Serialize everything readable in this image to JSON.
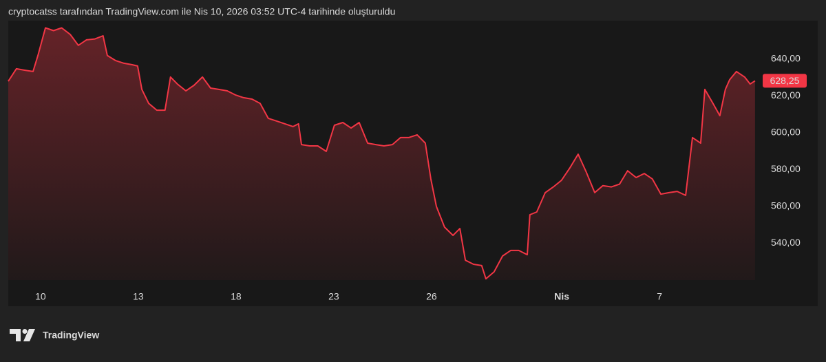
{
  "chart_data": {
    "type": "area",
    "title": "cryptocatss tarafından TradingView.com ile Nis 10, 2026 03:52 UTC-4 tarihinde oluşturuldu",
    "brand": "TradingView",
    "color": "#f23645",
    "x": [
      -0.99,
      -0.74,
      -0.49,
      -0.23,
      -0.08,
      0.15,
      0.4,
      0.65,
      0.91,
      1.16,
      1.41,
      1.67,
      1.92,
      2.05,
      2.3,
      2.56,
      2.81,
      2.98,
      3.11,
      3.32,
      3.57,
      3.82,
      3.99,
      4.2,
      4.46,
      4.71,
      4.97,
      5.22,
      5.47,
      5.73,
      5.98,
      6.23,
      6.49,
      6.74,
      6.99,
      7.25,
      7.5,
      7.75,
      7.92,
      8.01,
      8.26,
      8.51,
      8.77,
      9.02,
      9.28,
      9.53,
      9.78,
      10.04,
      10.29,
      10.54,
      10.8,
      11.05,
      11.3,
      11.56,
      11.81,
      11.98,
      12.15,
      12.4,
      12.66,
      12.87,
      13.04,
      13.29,
      13.54,
      13.67,
      13.92,
      14.18,
      14.43,
      14.68,
      14.94,
      15.02,
      15.23,
      15.49,
      15.74,
      15.99,
      16.25,
      16.5,
      16.75,
      17.01,
      17.26,
      17.52,
      17.77,
      18.02,
      18.28,
      18.53,
      18.78,
      19.04,
      19.29,
      19.54,
      19.8,
      20.01,
      20.26,
      20.39,
      20.64,
      20.85,
      21.02,
      21.15,
      21.36,
      21.61,
      21.78,
      21.93
    ],
    "values": [
      628.0,
      634.8,
      634.0,
      633.3,
      642.0,
      657.0,
      655.5,
      657.0,
      653.5,
      647.5,
      650.5,
      651.0,
      652.7,
      642.0,
      639.3,
      637.8,
      637.0,
      636.3,
      623.6,
      616.0,
      612.3,
      612.3,
      630.3,
      626.5,
      622.8,
      625.8,
      630.3,
      624.3,
      623.6,
      622.8,
      620.6,
      619.1,
      618.3,
      616.0,
      607.9,
      606.4,
      604.9,
      603.4,
      604.9,
      593.6,
      592.9,
      592.9,
      589.9,
      604.1,
      605.6,
      602.6,
      605.6,
      594.4,
      593.6,
      592.9,
      593.6,
      597.4,
      597.4,
      598.9,
      594.4,
      575.0,
      560.0,
      548.8,
      544.3,
      548.0,
      530.8,
      528.6,
      527.9,
      520.7,
      524.5,
      533.1,
      536.1,
      536.1,
      533.8,
      555.5,
      557.0,
      567.5,
      570.6,
      574.2,
      581.0,
      588.4,
      578.7,
      567.5,
      571.3,
      570.6,
      572.1,
      579.4,
      575.7,
      577.9,
      574.9,
      566.7,
      567.5,
      568.2,
      566.0,
      597.4,
      594.4,
      623.6,
      616.0,
      609.3,
      623.6,
      628.8,
      633.3,
      630.3,
      626.5,
      628.25
    ],
    "last_price": {
      "value": 628.25,
      "label": "628,25"
    },
    "xlim": [
      -0.99,
      22.08
    ],
    "ylim": [
      520,
      661
    ],
    "xticks": [
      {
        "value": 0,
        "label": "10"
      },
      {
        "value": 3,
        "label": "13"
      },
      {
        "value": 6,
        "label": "18"
      },
      {
        "value": 9,
        "label": "23"
      },
      {
        "value": 12,
        "label": "26"
      },
      {
        "value": 16,
        "label": "Nis"
      },
      {
        "value": 19,
        "label": "7"
      }
    ],
    "yticks": [
      {
        "value": 540,
        "label": "540,00"
      },
      {
        "value": 560,
        "label": "560,00"
      },
      {
        "value": 580,
        "label": "580,00"
      },
      {
        "value": 600,
        "label": "600,00"
      },
      {
        "value": 620,
        "label": "620,00"
      },
      {
        "value": 640,
        "label": "640,00"
      }
    ]
  }
}
